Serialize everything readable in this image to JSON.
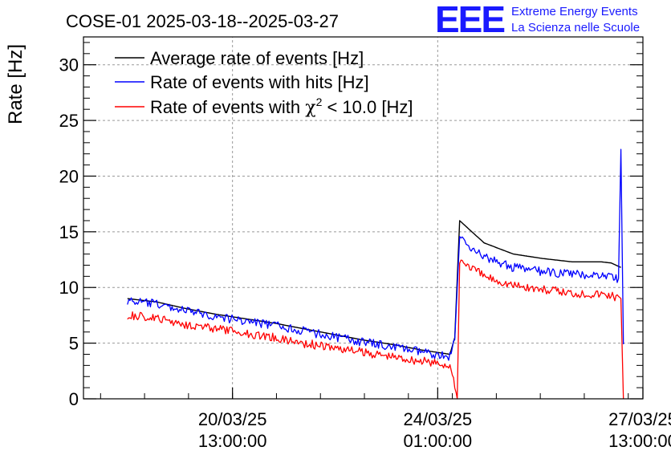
{
  "title": "COSE-01 2025-03-18--2025-03-27",
  "logo": {
    "mark": "EEE",
    "line1": "Extreme Energy Events",
    "line2": "La Scienza nelle Scuole",
    "color": "#1a1aff"
  },
  "chart_data": {
    "type": "line",
    "ylabel": "Rate [Hz]",
    "xlabel": "",
    "ylim": [
      0,
      32.5
    ],
    "yticks": [
      0,
      5,
      10,
      15,
      20,
      25,
      30
    ],
    "xlim": [
      "2025-03-18T00:00",
      "2025-03-27T13:00"
    ],
    "xticks": [
      {
        "t": "2025-03-20T13:00",
        "line1": "20/03/25",
        "line2": "13:00:00"
      },
      {
        "t": "2025-03-24T01:00",
        "line1": "24/03/25",
        "line2": "01:00:00"
      },
      {
        "t": "2025-03-27T13:00",
        "line1": "27/03/25",
        "line2": "13:00:00"
      }
    ],
    "grid": true,
    "legend_position": "top-left",
    "legend": [
      {
        "label": "Average rate of events [Hz]",
        "color": "#000000"
      },
      {
        "label": "Rate of events with hits [Hz]",
        "color": "#0000ff"
      },
      {
        "label_pre": "Rate of events with ",
        "label_chi": "χ",
        "label_sup": "2",
        "label_post": " < 10.0 [Hz]",
        "color": "#ff0000"
      }
    ],
    "series": [
      {
        "name": "Average rate of events [Hz]",
        "color": "#000000",
        "x": [
          "2025-03-18T18:00",
          "2025-03-19T06:00",
          "2025-03-19T18:00",
          "2025-03-20T06:00",
          "2025-03-20T18:00",
          "2025-03-21T06:00",
          "2025-03-21T18:00",
          "2025-03-22T06:00",
          "2025-03-22T18:00",
          "2025-03-23T06:00",
          "2025-03-23T18:00",
          "2025-03-24T06:00",
          "2025-03-24T08:00",
          "2025-03-24T10:00",
          "2025-03-24T20:00",
          "2025-03-25T08:00",
          "2025-03-25T20:00",
          "2025-03-26T08:00",
          "2025-03-26T20:00",
          "2025-03-27T00:00",
          "2025-03-27T04:00"
        ],
        "y": [
          9.0,
          8.7,
          8.1,
          7.6,
          7.2,
          6.8,
          6.3,
          5.8,
          5.3,
          4.9,
          4.4,
          4.0,
          5.5,
          16.0,
          14.0,
          13.0,
          12.6,
          12.3,
          12.3,
          12.2,
          11.8
        ]
      },
      {
        "name": "Rate of events with hits [Hz]",
        "color": "#0000ff",
        "x": [
          "2025-03-18T18:00",
          "2025-03-19T06:00",
          "2025-03-19T18:00",
          "2025-03-20T06:00",
          "2025-03-20T18:00",
          "2025-03-21T06:00",
          "2025-03-21T18:00",
          "2025-03-22T06:00",
          "2025-03-22T18:00",
          "2025-03-23T06:00",
          "2025-03-23T18:00",
          "2025-03-24T06:00",
          "2025-03-24T08:00",
          "2025-03-24T10:00",
          "2025-03-24T20:00",
          "2025-03-25T08:00",
          "2025-03-25T20:00",
          "2025-03-26T08:00",
          "2025-03-26T20:00",
          "2025-03-27T00:00",
          "2025-03-27T03:00",
          "2025-03-27T04:00",
          "2025-03-27T05:00"
        ],
        "y": [
          8.8,
          8.5,
          7.9,
          7.4,
          7.0,
          6.6,
          6.1,
          5.6,
          5.1,
          4.7,
          4.2,
          3.8,
          5.3,
          14.5,
          12.7,
          11.8,
          11.4,
          11.2,
          11.1,
          11.0,
          10.8,
          22.4,
          4.9
        ]
      },
      {
        "name": "Rate of events with χ2 < 10.0 [Hz]",
        "color": "#ff0000",
        "x": [
          "2025-03-18T18:00",
          "2025-03-19T06:00",
          "2025-03-19T18:00",
          "2025-03-20T06:00",
          "2025-03-20T18:00",
          "2025-03-21T06:00",
          "2025-03-21T18:00",
          "2025-03-22T06:00",
          "2025-03-22T18:00",
          "2025-03-23T06:00",
          "2025-03-23T18:00",
          "2025-03-24T06:00",
          "2025-03-24T09:00",
          "2025-03-24T10:00",
          "2025-03-24T20:00",
          "2025-03-25T08:00",
          "2025-03-25T20:00",
          "2025-03-26T08:00",
          "2025-03-26T20:00",
          "2025-03-27T00:00",
          "2025-03-27T04:00",
          "2025-03-27T05:00"
        ],
        "y": [
          7.5,
          7.2,
          6.7,
          6.3,
          5.9,
          5.5,
          5.0,
          4.6,
          4.2,
          3.8,
          3.4,
          3.0,
          0.0,
          12.5,
          11.0,
          10.2,
          9.8,
          9.5,
          9.4,
          9.3,
          9.0,
          0.0
        ]
      }
    ]
  }
}
